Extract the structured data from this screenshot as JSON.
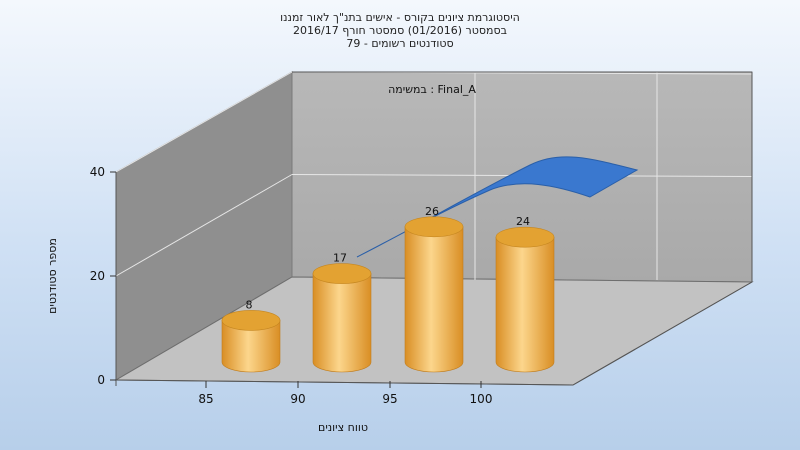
{
  "chart_data": {
    "type": "bar",
    "title_lines": [
      "היסטוגרמת ציונים בקורס - אישים בתנ\"ך לאור זמננו",
      "בסמסטר   (01/2016)  סמסטר חורף 2016/17",
      "סטודנטים רשומים - 79"
    ],
    "annotation": "במשימה : Final_A",
    "xlabel": "טווח ציונים",
    "ylabel": "מספר סטודנטים",
    "categories": [
      "85",
      "90",
      "95",
      "100"
    ],
    "series": [
      {
        "values": [
          8,
          17,
          26,
          24
        ]
      }
    ],
    "ylim": [
      0,
      40
    ],
    "yticks": [
      "0",
      "20",
      "40"
    ],
    "grid": true,
    "bar_style": "3d-cylinder",
    "colors": {
      "bar_light": "#fcd68c",
      "bar_dark": "#d98e24",
      "bar_top": "#e3a232",
      "curve": "#3a78cf",
      "back_wall": "#b3b3b3",
      "side_wall": "#8f8f8f",
      "floor": "#c2c2c2"
    }
  }
}
